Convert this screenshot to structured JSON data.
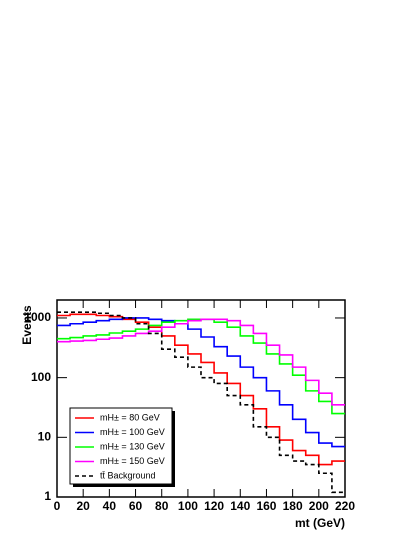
{
  "chart_data": {
    "type": "histogram",
    "ylabel": "Events",
    "xlabel": "mt (GeV)",
    "bins": [
      0,
      10,
      20,
      30,
      40,
      50,
      60,
      70,
      80,
      90,
      100,
      110,
      120,
      130,
      140,
      150,
      160,
      170,
      180,
      190,
      200,
      210,
      220
    ],
    "xlim": [
      0,
      220
    ],
    "xticks": [
      0,
      20,
      40,
      60,
      80,
      100,
      120,
      140,
      160,
      180,
      200,
      220
    ],
    "ylim": [
      1,
      2000
    ],
    "log_y": true,
    "yticks": [
      1,
      10,
      100,
      1000
    ],
    "legend": "lower left",
    "series": [
      {
        "name": "mH± = 80 GeV",
        "color": "#ff0000",
        "dashed": false,
        "values": [
          1100,
          1150,
          1150,
          1100,
          1050,
          950,
          850,
          700,
          500,
          350,
          250,
          180,
          120,
          80,
          50,
          30,
          15,
          9,
          6,
          5,
          3.5,
          4
        ]
      },
      {
        "name": "mH± = 100 GeV",
        "color": "#0000ff",
        "dashed": false,
        "values": [
          750,
          800,
          850,
          900,
          950,
          1000,
          1000,
          950,
          900,
          800,
          650,
          480,
          330,
          230,
          150,
          100,
          60,
          35,
          20,
          12,
          8,
          7
        ]
      },
      {
        "name": "mH± = 130 GeV",
        "color": "#00ff00",
        "dashed": false,
        "values": [
          450,
          470,
          500,
          520,
          560,
          600,
          650,
          750,
          850,
          900,
          950,
          950,
          850,
          700,
          500,
          380,
          250,
          170,
          110,
          60,
          40,
          25
        ]
      },
      {
        "name": "mH± = 150 GeV",
        "color": "#ff00ff",
        "dashed": false,
        "values": [
          400,
          410,
          420,
          440,
          460,
          500,
          550,
          600,
          700,
          800,
          900,
          950,
          950,
          900,
          750,
          550,
          350,
          240,
          150,
          90,
          55,
          35
        ]
      },
      {
        "name": "tt̄ Background",
        "color": "#000000",
        "dashed": true,
        "values": [
          1250,
          1250,
          1250,
          1200,
          1100,
          1000,
          800,
          550,
          300,
          220,
          150,
          100,
          80,
          50,
          35,
          15,
          10,
          5,
          4,
          3.5,
          2.5,
          1.2
        ]
      }
    ]
  }
}
